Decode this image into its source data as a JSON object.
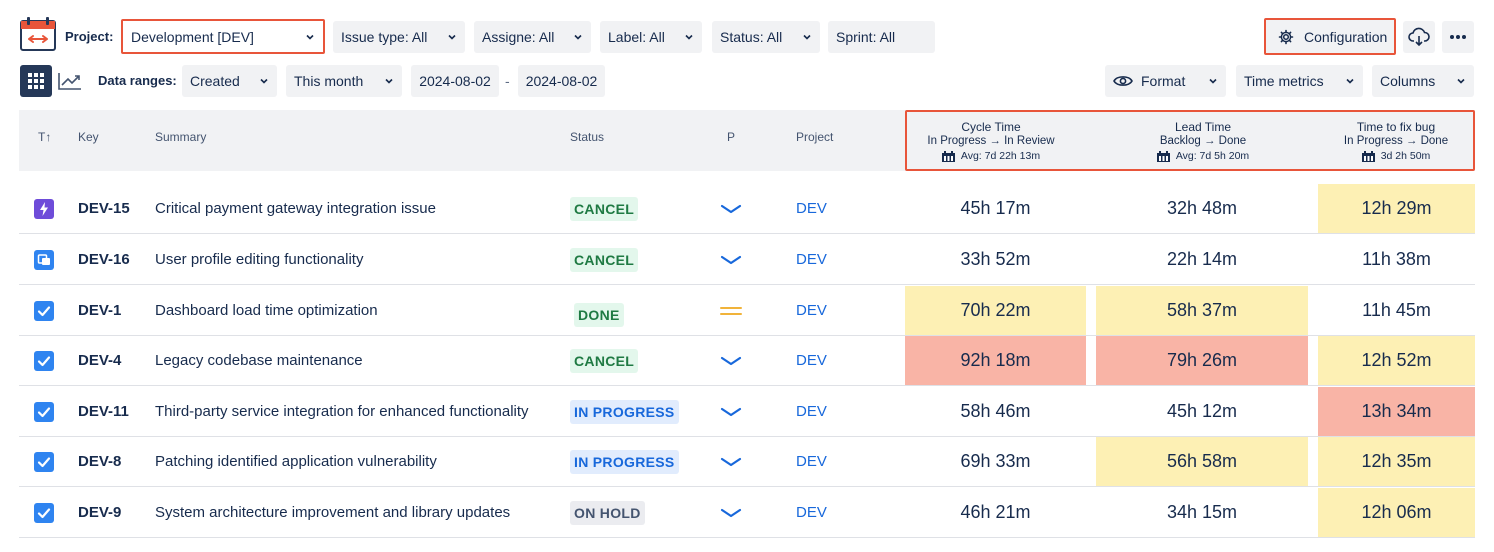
{
  "toolbar": {
    "project_label": "Project:",
    "project_value": "Development [DEV]",
    "filters": {
      "issue_type": "Issue type: All",
      "assignee": "Assigne: All",
      "label": "Label: All",
      "status": "Status: All",
      "sprint": "Sprint: All"
    },
    "configuration_label": "Configuration",
    "data_ranges_label": "Data ranges:",
    "range_field": "Created",
    "range_period": "This month",
    "date_from": "2024-08-02",
    "date_separator": "-",
    "date_to": "2024-08-02",
    "format_label": "Format",
    "time_metrics_label": "Time metrics",
    "columns_label": "Columns"
  },
  "table": {
    "headers": {
      "type": "T↑",
      "key": "Key",
      "summary": "Summary",
      "status": "Status",
      "priority": "P",
      "project": "Project"
    },
    "metrics": [
      {
        "title": "Cycle Time",
        "transition": "In Progress → In Review",
        "avg": "Avg: 7d 22h 13m"
      },
      {
        "title": "Lead Time",
        "transition": "Backlog → Done",
        "avg": "Avg: 7d 5h 20m"
      },
      {
        "title": "Time to fix bug",
        "transition": "In Progress → Done",
        "avg": "3d 2h 50m"
      }
    ],
    "rows": [
      {
        "type": "epic",
        "key": "DEV-15",
        "summary": "Critical payment gateway integration issue",
        "status": "CANCEL",
        "status_kind": "cancel",
        "priority": "low",
        "project": "DEV",
        "cycle": "45h 17m",
        "lead": "32h 48m",
        "fix": "12h 29m",
        "cycle_hl": "",
        "lead_hl": "",
        "fix_hl": "yellow"
      },
      {
        "type": "story",
        "key": "DEV-16",
        "summary": "User profile editing functionality",
        "status": "CANCEL",
        "status_kind": "cancel",
        "priority": "low",
        "project": "DEV",
        "cycle": "33h 52m",
        "lead": "22h 14m",
        "fix": "11h 38m",
        "cycle_hl": "",
        "lead_hl": "",
        "fix_hl": ""
      },
      {
        "type": "task",
        "key": "DEV-1",
        "summary": "Dashboard load time optimization",
        "status": "DONE",
        "status_kind": "done",
        "priority": "medium",
        "project": "DEV",
        "cycle": "70h 22m",
        "lead": "58h 37m",
        "fix": "11h 45m",
        "cycle_hl": "yellow",
        "lead_hl": "yellow",
        "fix_hl": ""
      },
      {
        "type": "task",
        "key": "DEV-4",
        "summary": "Legacy codebase maintenance",
        "status": "CANCEL",
        "status_kind": "cancel",
        "priority": "low",
        "project": "DEV",
        "cycle": "92h 18m",
        "lead": "79h 26m",
        "fix": "12h 52m",
        "cycle_hl": "red",
        "lead_hl": "red",
        "fix_hl": "yellow"
      },
      {
        "type": "task",
        "key": "DEV-11",
        "summary": "Third-party service integration for enhanced functionality",
        "status": "IN PROGRESS",
        "status_kind": "progress",
        "priority": "low",
        "project": "DEV",
        "cycle": "58h 46m",
        "lead": "45h 12m",
        "fix": "13h 34m",
        "cycle_hl": "",
        "lead_hl": "",
        "fix_hl": "red"
      },
      {
        "type": "task",
        "key": "DEV-8",
        "summary": "Patching identified application vulnerability",
        "status": "IN PROGRESS",
        "status_kind": "progress",
        "priority": "low",
        "project": "DEV",
        "cycle": "69h 33m",
        "lead": "56h 58m",
        "fix": "12h 35m",
        "cycle_hl": "",
        "lead_hl": "yellow",
        "fix_hl": "yellow"
      },
      {
        "type": "task",
        "key": "DEV-9",
        "summary": "System architecture improvement and library updates",
        "status": "ON HOLD",
        "status_kind": "hold",
        "priority": "low",
        "project": "DEV",
        "cycle": "46h 21m",
        "lead": "34h 15m",
        "fix": "12h 06m",
        "cycle_hl": "",
        "lead_hl": "",
        "fix_hl": "yellow"
      }
    ]
  },
  "colors": {
    "highlight_yellow": "#fdf0b4",
    "highlight_red": "#f9b4a6",
    "accent_frame": "#e8553a",
    "link_blue": "#1868db"
  }
}
